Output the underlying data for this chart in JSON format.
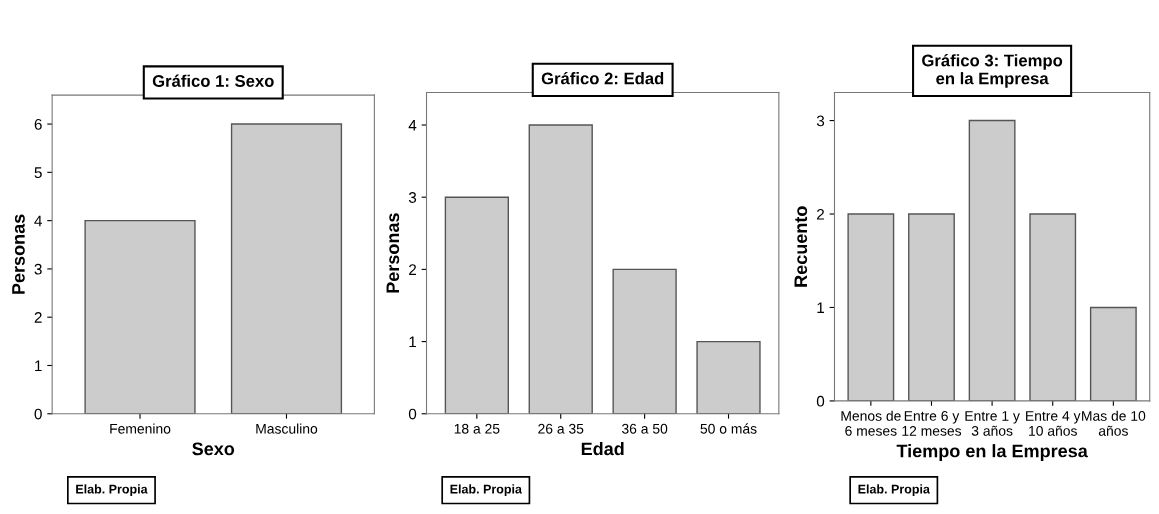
{
  "chart_data": [
    {
      "type": "bar",
      "title": "Gráfico 1: Sexo",
      "xlabel": "Sexo",
      "ylabel": "Personas",
      "categories": [
        "Femenino",
        "Masculino"
      ],
      "values": [
        4,
        6
      ],
      "color": "#cccccc",
      "ylim": [
        0,
        6.6
      ],
      "yticks": [
        0,
        1,
        2,
        3,
        4,
        5,
        6
      ],
      "grid": false,
      "annotations": [
        "Elab. Propia"
      ]
    },
    {
      "type": "bar",
      "title": "Gráfico 2: Edad",
      "xlabel": "Edad",
      "ylabel": "Personas",
      "categories": [
        "18 a 25",
        "26 a 35",
        "36 a 50",
        "50 o más"
      ],
      "values": [
        3,
        4,
        2,
        1
      ],
      "color": "#cccccc",
      "ylim": [
        0,
        4.45
      ],
      "yticks": [
        0,
        1,
        2,
        3,
        4
      ],
      "grid": false,
      "annotations": [
        "Elab. Propia"
      ]
    },
    {
      "type": "bar",
      "title": "Gráfico 3: Tiempo\nen la Empresa",
      "xlabel": "Tiempo en la Empresa",
      "ylabel": "Recuento",
      "categories": [
        "Menos de\n6 meses",
        "Entre 6 y\n12 meses",
        "Entre 1 y\n3 años",
        "Entre 4 y\n10 años",
        "Mas de 10\naños"
      ],
      "values": [
        2,
        2,
        3,
        2,
        1
      ],
      "color": "#cccccc",
      "ylim": [
        0,
        3.3
      ],
      "yticks": [
        0,
        1,
        2,
        3
      ],
      "grid": false,
      "annotations": [
        "Elab. Propia"
      ]
    }
  ]
}
